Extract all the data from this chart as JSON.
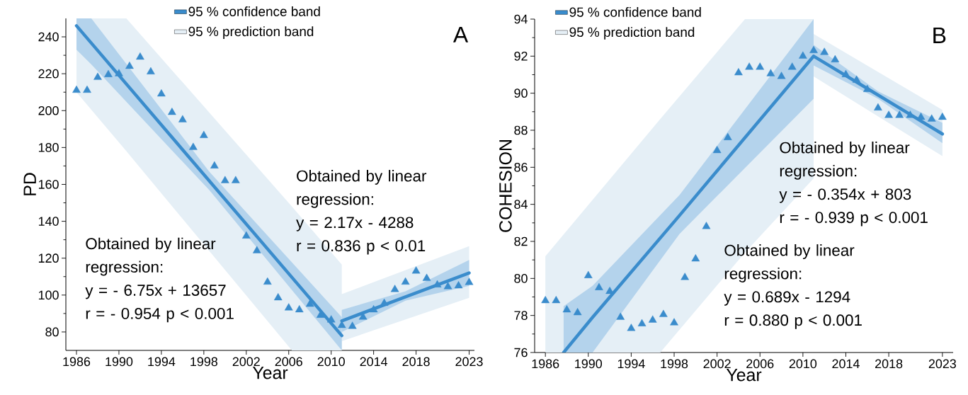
{
  "chart_data": [
    {
      "type": "scatter",
      "title": "A",
      "xlabel": "Year",
      "ylabel": "PD",
      "legend": "top",
      "xlim": [
        1985,
        2023.5
      ],
      "ylim": [
        70,
        250
      ],
      "xticks": [
        1986,
        1990,
        1994,
        1998,
        2002,
        2006,
        2010,
        2014,
        2018,
        2023
      ],
      "yticks": [
        80,
        100,
        120,
        140,
        160,
        180,
        200,
        220,
        240
      ],
      "x": [
        1986,
        1987,
        1988,
        1989,
        1990,
        1991,
        1992,
        1993,
        1994,
        1995,
        1996,
        1997,
        1998,
        1999,
        2000,
        2001,
        2002,
        2003,
        2004,
        2005,
        2006,
        2007,
        2008,
        2009,
        2010,
        2011,
        2012,
        2013,
        2014,
        2015,
        2016,
        2017,
        2018,
        2019,
        2020,
        2021,
        2022,
        2023
      ],
      "series": [
        {
          "type": "area",
          "name": "95 % prediction band",
          "color": "#e5eff6",
          "x": [
            1986,
            1990.7,
            2006.3,
            2011,
            2011,
            2023
          ],
          "values": [
            null,
            null,
            null,
            null,
            null,
            null
          ],
          "lower": [
            210,
            178,
            70,
            70,
            75,
            98.5
          ],
          "upper": [
            250,
            250,
            148,
            116.5,
            100.5,
            126.5
          ]
        },
        {
          "type": "line",
          "name": "95 % confidence band",
          "marker": "none",
          "color": "#3a8ccc",
          "x": [
            1986,
            1987.4,
            1998.5,
            2011,
            2011,
            2017,
            2023
          ],
          "values": [
            246,
            236.6,
            162,
            78,
            86,
            99,
            112
          ],
          "lower": [
            233,
            225,
            157,
            70,
            80,
            97,
            105
          ],
          "upper": [
            250,
            250,
            167,
            88,
            92,
            102,
            119
          ]
        },
        {
          "marker": "triangle",
          "color": "#3a8ccc",
          "values": [
            211,
            211,
            218,
            219.5,
            220,
            224,
            229,
            221,
            209,
            199,
            195,
            180,
            186.5,
            170,
            162,
            162,
            132,
            124,
            107,
            98.5,
            93,
            92,
            95,
            89,
            86.5,
            83.5,
            83,
            88,
            92,
            95.5,
            103,
            107,
            113,
            109,
            105.5,
            104.5,
            105,
            106.8
          ]
        }
      ],
      "annotations": [
        "Obtained by linear regression:",
        "y = - 6.75x + 13657",
        "r = - 0.954  p < 0.001",
        "Obtained by linear regression:",
        "y = 2.17x - 4288",
        "r = 0.836  p <  0.01"
      ]
    },
    {
      "type": "scatter",
      "title": "B",
      "xlabel": "Year",
      "ylabel": "COHESION",
      "legend": "top",
      "xlim": [
        1985,
        2024
      ],
      "ylim": [
        76,
        94
      ],
      "xticks": [
        1986,
        1990,
        1994,
        1998,
        2002,
        2006,
        2010,
        2014,
        2018,
        2023
      ],
      "yticks": [
        76,
        78,
        80,
        82,
        84,
        86,
        88,
        90,
        92,
        94
      ],
      "x": [
        1986,
        1987,
        1988,
        1989,
        1990,
        1991,
        1992,
        1993,
        1994,
        1995,
        1996,
        1997,
        1998,
        1999,
        2000,
        2001,
        2002,
        2003,
        2004,
        2005,
        2006,
        2007,
        2008,
        2009,
        2010,
        2011,
        2012,
        2013,
        2014,
        2015,
        2016,
        2017,
        2018,
        2019,
        2020,
        2021,
        2022,
        2023
      ],
      "series": [
        {
          "type": "area",
          "name": "95 % prediction band",
          "color": "#e5eff6",
          "x": [
            1986,
            1996.7,
            2004.6,
            2011,
            2011,
            2023
          ],
          "values": [
            null,
            null,
            null,
            null,
            null,
            null
          ],
          "lower": [
            76,
            76,
            81.4,
            85.4,
            90.9,
            86.6
          ],
          "upper": [
            81.2,
            88.6,
            94,
            94,
            93.2,
            89.1
          ]
        },
        {
          "type": "line",
          "name": "95 % confidence band",
          "marker": "none",
          "color": "#3a8ccc",
          "x": [
            1987.7,
            1990.4,
            1998.5,
            2011,
            2011,
            2017,
            2023
          ],
          "values": [
            76,
            77.9,
            83.4,
            92,
            92,
            89.9,
            87.8
          ],
          "lower": [
            76,
            76,
            82.4,
            89.7,
            91.5,
            89.7,
            87.3
          ],
          "upper": [
            78.5,
            79.6,
            84.5,
            94,
            92.6,
            90.1,
            88.4
          ]
        },
        {
          "marker": "triangle",
          "color": "#3a8ccc",
          "values": [
            78.8,
            78.8,
            78.3,
            78.15,
            80.15,
            79.5,
            79.3,
            77.9,
            77.3,
            77.55,
            77.75,
            78.05,
            77.6,
            80.05,
            81.05,
            82.8,
            86.9,
            87.6,
            91.1,
            91.4,
            91.4,
            91.05,
            90.9,
            91.4,
            92.0,
            92.3,
            92.2,
            91.8,
            91.0,
            90.7,
            90.2,
            89.2,
            88.8,
            88.8,
            88.8,
            88.7,
            88.6,
            88.7
          ]
        }
      ],
      "annotations": [
        "Obtained by linear regression:",
        "y = - 0.354x + 803",
        "r = - 0.939  p < 0.001",
        "Obtained by linear regression:",
        "y = 0.689x - 1294",
        "r = 0.880  p < 0.001"
      ]
    }
  ]
}
